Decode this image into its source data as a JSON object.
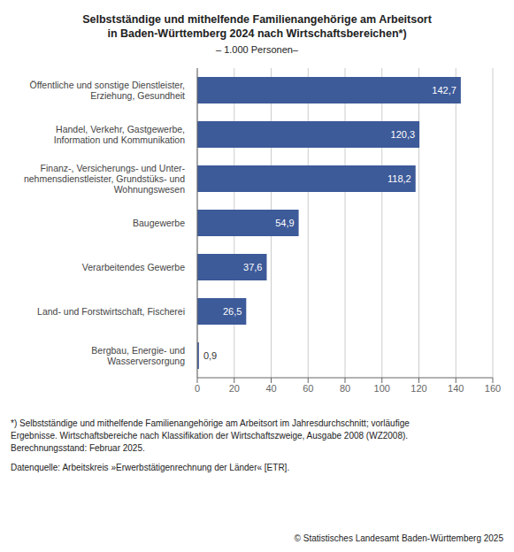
{
  "chart_data": {
    "type": "bar",
    "orientation": "horizontal",
    "title": "Selbstständige und mithelfende Familienangehörige am Arbeitsort\nin Baden-Württemberg 2024 nach Wirtschaftsbereichen*)",
    "subtitle": "– 1.000 Personen–",
    "categories": [
      "Bergbau, Energie- und\nWasserversorgung",
      "Land- und Forstwirtschaft, Fischerei",
      "Verarbeitendes Gewerbe",
      "Baugewerbe",
      "Finanz-, Versicherungs- und Unter-\nnehmensdienstleister, Grundstüks- und\nWohnungswesen",
      "Handel, Verkehr, Gastgewerbe,\nInformation und Kommunikation",
      "Öffentliche und sonstige Dienstleister,\nErziehung, Gesundheit"
    ],
    "values": [
      0.9,
      26.5,
      37.6,
      54.9,
      118.2,
      120.3,
      142.7
    ],
    "data_labels": true,
    "value_labels": [
      "0,9",
      "26,5",
      "37,6",
      "54,9",
      "118,2",
      "120,3",
      "142,7"
    ],
    "color": "#3d5a99",
    "xlim": [
      0,
      160
    ],
    "xticks": [
      0,
      20,
      40,
      60,
      80,
      100,
      120,
      140,
      160
    ],
    "grid": true,
    "annotations": [
      "*) Selbstständige und mithelfende Familienangehörige am Arbeitsort im Jahresdurchschnitt; vorläufige",
      "Ergebnisse. Wirtschaftsbereiche nach Klassifikation der Wirtschaftszweige, Ausgabe 2008 (WZ2008).",
      "Berechnungsstand: Februar 2025.",
      "Datenquelle: Arbeitskreis »Erwerbstätigenrechnung der Länder« [ETR].",
      "© Statistisches Landesamt Baden-Württemberg 2025"
    ]
  }
}
